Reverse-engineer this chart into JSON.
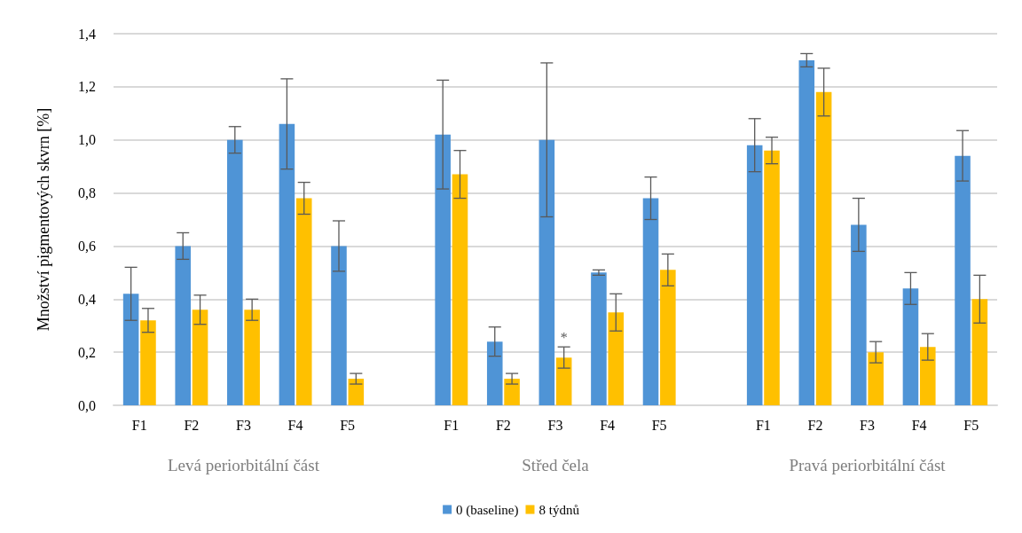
{
  "chart_data": {
    "type": "bar",
    "ylabel": "Množství pigmentových skvrn [%]",
    "categories": [
      "F1",
      "F2",
      "F3",
      "F4",
      "F5",
      null,
      "F1",
      "F2",
      "F3",
      "F4",
      "F5",
      null,
      "F1",
      "F2",
      "F3",
      "F4",
      "F5"
    ],
    "series": [
      {
        "name": "0 (baseline)",
        "color": "#4f94d6",
        "values": [
          0.42,
          0.6,
          1.0,
          1.06,
          0.6,
          null,
          1.02,
          0.24,
          1.0,
          0.5,
          0.78,
          null,
          0.98,
          1.3,
          0.68,
          0.44,
          0.94
        ],
        "errors": [
          0.1,
          0.05,
          0.05,
          0.17,
          0.095,
          null,
          0.205,
          0.055,
          0.29,
          0.01,
          0.08,
          null,
          0.1,
          0.025,
          0.1,
          0.06,
          0.095
        ]
      },
      {
        "name": "8 týdnů",
        "color": "#ffc000",
        "values": [
          0.32,
          0.36,
          0.36,
          0.78,
          0.1,
          null,
          0.87,
          0.1,
          0.18,
          0.35,
          0.51,
          null,
          0.96,
          1.18,
          0.2,
          0.22,
          0.4
        ],
        "errors": [
          0.045,
          0.055,
          0.04,
          0.06,
          0.02,
          null,
          0.09,
          0.02,
          0.04,
          0.07,
          0.06,
          null,
          0.05,
          0.09,
          0.04,
          0.05,
          0.09
        ],
        "value_labels": [
          null,
          null,
          null,
          null,
          null,
          null,
          null,
          null,
          "*",
          null,
          null,
          null,
          null,
          null,
          null,
          null,
          null
        ]
      }
    ],
    "annotations": [
      "Levá periorbitální část",
      "Střed čela",
      "Pravá periorbitální část"
    ],
    "ylim": [
      0,
      1.4
    ],
    "yticks": [
      {
        "value": 0,
        "label": "0,0"
      },
      {
        "value": 0.2,
        "label": "0,2"
      },
      {
        "value": 0.4,
        "label": "0,4"
      },
      {
        "value": 0.6,
        "label": "0,6"
      },
      {
        "value": 0.8,
        "label": "0,8"
      },
      {
        "value": 1.0,
        "label": "1,0"
      },
      {
        "value": 1.2,
        "label": "1,2"
      },
      {
        "value": 1.4,
        "label": "1,4"
      }
    ],
    "grid": "y",
    "legend": "bottom"
  }
}
